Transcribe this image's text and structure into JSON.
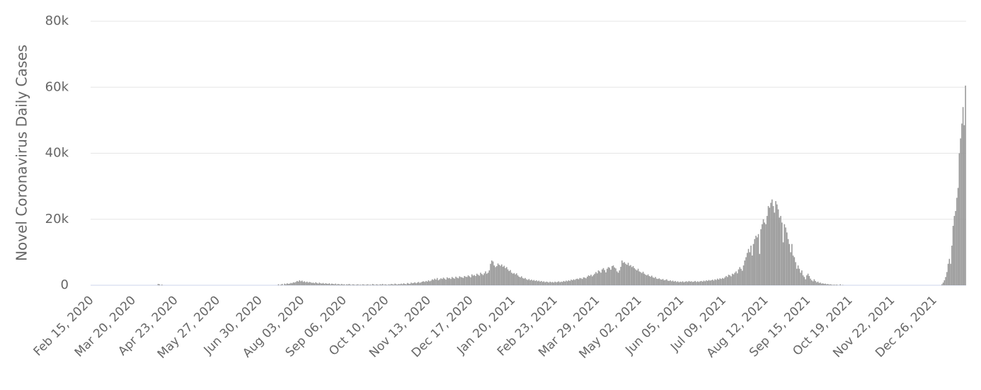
{
  "chart_data": {
    "type": "bar",
    "y_label": "Novel Coronavirus Daily Cases",
    "color": "#999999",
    "grid": true,
    "ylim": [
      0,
      80000
    ],
    "yticks": [
      0,
      {
        "value": 20000,
        "label": "20k"
      },
      {
        "value": 40000,
        "label": "40k"
      },
      {
        "value": 60000,
        "label": "60k"
      },
      {
        "value": 80000,
        "label": "80k"
      }
    ],
    "categories": [
      "Feb 15, 2020",
      null,
      null,
      null,
      null,
      null,
      null,
      null,
      null,
      null,
      null,
      null,
      null,
      null,
      null,
      null,
      null,
      null,
      null,
      null,
      null,
      null,
      null,
      null,
      null,
      null,
      null,
      null,
      null,
      null,
      null,
      null,
      null,
      null,
      "Mar 20, 2020",
      null,
      null,
      null,
      null,
      null,
      null,
      null,
      null,
      null,
      null,
      null,
      null,
      null,
      null,
      null,
      null,
      null,
      null,
      null,
      null,
      null,
      null,
      null,
      null,
      null,
      null,
      null,
      null,
      null,
      null,
      null,
      null,
      null,
      "Apr 23, 2020",
      null,
      null,
      null,
      null,
      null,
      null,
      null,
      null,
      null,
      null,
      null,
      null,
      null,
      null,
      null,
      null,
      null,
      null,
      null,
      null,
      null,
      null,
      null,
      null,
      null,
      null,
      null,
      null,
      null,
      null,
      null,
      null,
      null,
      "May 27, 2020",
      null,
      null,
      null,
      null,
      null,
      null,
      null,
      null,
      null,
      null,
      null,
      null,
      null,
      null,
      null,
      null,
      null,
      null,
      null,
      null,
      null,
      null,
      null,
      null,
      null,
      null,
      null,
      null,
      null,
      null,
      null,
      null,
      null,
      "Jun 30, 2020",
      null,
      null,
      null,
      null,
      null,
      null,
      null,
      null,
      null,
      null,
      null,
      null,
      null,
      null,
      null,
      null,
      null,
      null,
      null,
      null,
      null,
      null,
      null,
      null,
      null,
      null,
      null,
      null,
      null,
      null,
      null,
      null,
      null,
      "Aug 03, 2020",
      null,
      null,
      null,
      null,
      null,
      null,
      null,
      null,
      null,
      null,
      null,
      null,
      null,
      null,
      null,
      null,
      null,
      null,
      null,
      null,
      null,
      null,
      null,
      null,
      null,
      null,
      null,
      null,
      null,
      null,
      null,
      null,
      null,
      "Sep 06, 2020",
      null,
      null,
      null,
      null,
      null,
      null,
      null,
      null,
      null,
      null,
      null,
      null,
      null,
      null,
      null,
      null,
      null,
      null,
      null,
      null,
      null,
      null,
      null,
      null,
      null,
      null,
      null,
      null,
      null,
      null,
      null,
      null,
      null,
      "Oct 10, 2020",
      null,
      null,
      null,
      null,
      null,
      null,
      null,
      null,
      null,
      null,
      null,
      null,
      null,
      null,
      null,
      null,
      null,
      null,
      null,
      null,
      null,
      null,
      null,
      null,
      null,
      null,
      null,
      null,
      null,
      null,
      null,
      null,
      null,
      "Nov 13, 2020",
      null,
      null,
      null,
      null,
      null,
      null,
      null,
      null,
      null,
      null,
      null,
      null,
      null,
      null,
      null,
      null,
      null,
      null,
      null,
      null,
      null,
      null,
      null,
      null,
      null,
      null,
      null,
      null,
      null,
      null,
      null,
      null,
      null,
      "Dec 17, 2020",
      null,
      null,
      null,
      null,
      null,
      null,
      null,
      null,
      null,
      null,
      null,
      null,
      null,
      null,
      null,
      null,
      null,
      null,
      null,
      null,
      null,
      null,
      null,
      null,
      null,
      null,
      null,
      null,
      null,
      null,
      null,
      null,
      null,
      "Jan 20, 2021",
      null,
      null,
      null,
      null,
      null,
      null,
      null,
      null,
      null,
      null,
      null,
      null,
      null,
      null,
      null,
      null,
      null,
      null,
      null,
      null,
      null,
      null,
      null,
      null,
      null,
      null,
      null,
      null,
      null,
      null,
      null,
      null,
      null,
      "Feb 23, 2021",
      null,
      null,
      null,
      null,
      null,
      null,
      null,
      null,
      null,
      null,
      null,
      null,
      null,
      null,
      null,
      null,
      null,
      null,
      null,
      null,
      null,
      null,
      null,
      null,
      null,
      null,
      null,
      null,
      null,
      null,
      null,
      null,
      null,
      "Mar 29, 2021",
      null,
      null,
      null,
      null,
      null,
      null,
      null,
      null,
      null,
      null,
      null,
      null,
      null,
      null,
      null,
      null,
      null,
      null,
      null,
      null,
      null,
      null,
      null,
      null,
      null,
      null,
      null,
      null,
      null,
      null,
      null,
      null,
      null,
      "May 02, 2021",
      null,
      null,
      null,
      null,
      null,
      null,
      null,
      null,
      null,
      null,
      null,
      null,
      null,
      null,
      null,
      null,
      null,
      null,
      null,
      null,
      null,
      null,
      null,
      null,
      null,
      null,
      null,
      null,
      null,
      null,
      null,
      null,
      null,
      "Jun 05, 2021",
      null,
      null,
      null,
      null,
      null,
      null,
      null,
      null,
      null,
      null,
      null,
      null,
      null,
      null,
      null,
      null,
      null,
      null,
      null,
      null,
      null,
      null,
      null,
      null,
      null,
      null,
      null,
      null,
      null,
      null,
      null,
      null,
      null,
      "Jul 09, 2021",
      null,
      null,
      null,
      null,
      null,
      null,
      null,
      null,
      null,
      null,
      null,
      null,
      null,
      null,
      null,
      null,
      null,
      null,
      null,
      null,
      null,
      null,
      null,
      null,
      null,
      null,
      null,
      null,
      null,
      null,
      null,
      null,
      null,
      "Aug 12, 2021",
      null,
      null,
      null,
      null,
      null,
      null,
      null,
      null,
      null,
      null,
      null,
      null,
      null,
      null,
      null,
      null,
      null,
      null,
      null,
      null,
      null,
      null,
      null,
      null,
      null,
      null,
      null,
      null,
      null,
      null,
      null,
      null,
      null,
      "Sep 15, 2021",
      null,
      null,
      null,
      null,
      null,
      null,
      null,
      null,
      null,
      null,
      null,
      null,
      null,
      null,
      null,
      null,
      null,
      null,
      null,
      null,
      null,
      null,
      null,
      null,
      null,
      null,
      null,
      null,
      null,
      null,
      null,
      null,
      null,
      "Oct 19, 2021",
      null,
      null,
      null,
      null,
      null,
      null,
      null,
      null,
      null,
      null,
      null,
      null,
      null,
      null,
      null,
      null,
      null,
      null,
      null,
      null,
      null,
      null,
      null,
      null,
      null,
      null,
      null,
      null,
      null,
      null,
      null,
      null,
      null,
      "Nov 22, 2021",
      null,
      null,
      null,
      null,
      null,
      null,
      null,
      null,
      null,
      null,
      null,
      null,
      null,
      null,
      null,
      null,
      null,
      null,
      null,
      null,
      null,
      null,
      null,
      null,
      null,
      null,
      null,
      null,
      null,
      null,
      null,
      null,
      null,
      "Dec 26, 2021",
      null,
      null,
      null,
      null,
      null,
      null,
      null,
      null,
      null,
      null,
      null,
      null,
      null,
      null,
      null,
      null,
      null,
      null,
      null,
      null,
      null,
      null,
      null,
      null,
      null
    ],
    "values": [
      0,
      0,
      0,
      0,
      0,
      0,
      0,
      0,
      0,
      0,
      0,
      0,
      0,
      0,
      0,
      0,
      0,
      0,
      0,
      0,
      0,
      0,
      0,
      0,
      0,
      0,
      0,
      0,
      0,
      0,
      0,
      0,
      0,
      0,
      0,
      0,
      0,
      0,
      0,
      0,
      0,
      0,
      0,
      0,
      0,
      0,
      0,
      0,
      0,
      0,
      0,
      0,
      0,
      0,
      400,
      300,
      0,
      200,
      0,
      0,
      0,
      0,
      0,
      0,
      0,
      0,
      0,
      0,
      0,
      0,
      0,
      0,
      0,
      0,
      0,
      0,
      0,
      0,
      0,
      0,
      0,
      0,
      0,
      0,
      0,
      0,
      0,
      0,
      0,
      0,
      0,
      0,
      0,
      0,
      0,
      0,
      0,
      0,
      0,
      0,
      0,
      0,
      0,
      0,
      0,
      0,
      0,
      0,
      0,
      0,
      0,
      0,
      0,
      0,
      0,
      0,
      0,
      0,
      0,
      0,
      0,
      0,
      0,
      0,
      0,
      0,
      0,
      0,
      0,
      0,
      0,
      0,
      0,
      0,
      0,
      0,
      0,
      0,
      0,
      0,
      0,
      0,
      0,
      0,
      0,
      0,
      0,
      0,
      0,
      0,
      0,
      300,
      0,
      200,
      400,
      0,
      500,
      300,
      600,
      400,
      500,
      700,
      600,
      900,
      800,
      1000,
      1300,
      1100,
      1500,
      1200,
      1400,
      1000,
      1200,
      900,
      1100,
      800,
      1000,
      900,
      700,
      800,
      600,
      900,
      700,
      500,
      800,
      600,
      500,
      700,
      400,
      600,
      500,
      400,
      600,
      300,
      500,
      400,
      300,
      500,
      200,
      400,
      300,
      200,
      400,
      200,
      300,
      100,
      300,
      200,
      400,
      200,
      100,
      300,
      200,
      100,
      200,
      300,
      100,
      200,
      100,
      300,
      200,
      100,
      200,
      300,
      100,
      200,
      100,
      400,
      200,
      100,
      300,
      200,
      100,
      300,
      200,
      400,
      100,
      300,
      200,
      100,
      300,
      200,
      400,
      300,
      200,
      500,
      300,
      200,
      400,
      300,
      500,
      300,
      600,
      400,
      300,
      700,
      500,
      400,
      800,
      600,
      700,
      900,
      600,
      800,
      1000,
      700,
      900,
      1100,
      1200,
      1000,
      1300,
      1100,
      1500,
      1200,
      1400,
      1800,
      1600,
      2000,
      1700,
      2200,
      1500,
      1800,
      2100,
      1900,
      2300,
      2000,
      1700,
      2400,
      2100,
      2200,
      1900,
      2500,
      2200,
      2000,
      2600,
      2300,
      2100,
      2700,
      2500,
      2400,
      2200,
      2800,
      2600,
      2500,
      3000,
      2700,
      2400,
      3300,
      2900,
      3100,
      2800,
      3500,
      3200,
      2900,
      3800,
      3400,
      3100,
      3600,
      4200,
      3500,
      3800,
      4500,
      6500,
      7500,
      7200,
      6000,
      5500,
      5800,
      6600,
      6200,
      5900,
      6300,
      5600,
      5900,
      5200,
      5500,
      4800,
      4300,
      4600,
      3800,
      3500,
      3700,
      3300,
      3600,
      3000,
      2600,
      2400,
      2700,
      2200,
      2000,
      2200,
      1800,
      1600,
      1900,
      1500,
      1700,
      1400,
      1600,
      1300,
      1500,
      1200,
      1400,
      1100,
      1300,
      1000,
      1200,
      900,
      1100,
      1000,
      800,
      1100,
      900,
      1000,
      800,
      1100,
      900,
      1000,
      1200,
      900,
      1100,
      1000,
      1300,
      1100,
      1400,
      1200,
      1500,
      1300,
      1700,
      1500,
      1800,
      1600,
      1900,
      2000,
      1800,
      2200,
      2100,
      1900,
      2400,
      2300,
      2100,
      2600,
      3000,
      2800,
      3200,
      2700,
      3100,
      3500,
      4000,
      3600,
      4500,
      4200,
      3800,
      4800,
      5200,
      4600,
      3900,
      5000,
      5500,
      5300,
      4700,
      5800,
      6000,
      5400,
      5100,
      4200,
      3800,
      4500,
      5600,
      7500,
      6800,
      7000,
      6500,
      6200,
      6800,
      5900,
      6100,
      5500,
      5800,
      5200,
      4800,
      4500,
      5000,
      4200,
      4000,
      3700,
      4100,
      3500,
      3200,
      3000,
      3300,
      2800,
      2600,
      2900,
      2400,
      2200,
      2500,
      2000,
      1900,
      2100,
      1800,
      1700,
      1900,
      1500,
      1600,
      1800,
      1400,
      1300,
      1500,
      1200,
      1400,
      1100,
      1300,
      1000,
      1200,
      900,
      1100,
      1000,
      1200,
      900,
      1100,
      1200,
      1000,
      1300,
      1100,
      1200,
      1000,
      1100,
      1300,
      1000,
      1200,
      1000,
      1200,
      1300,
      1100,
      1400,
      1200,
      1500,
      1300,
      1600,
      1400,
      1500,
      1700,
      1400,
      1800,
      1600,
      2000,
      1700,
      2100,
      1900,
      2200,
      2000,
      2400,
      2800,
      2500,
      3200,
      3000,
      2700,
      3500,
      3300,
      3800,
      4200,
      3600,
      4800,
      5500,
      5000,
      4400,
      6000,
      7500,
      8500,
      9800,
      11000,
      10000,
      12000,
      9000,
      12500,
      14000,
      15000,
      14500,
      15500,
      9500,
      17000,
      18500,
      20000,
      19000,
      18500,
      21000,
      24000,
      23500,
      25000,
      26000,
      24000,
      22000,
      25500,
      24500,
      23000,
      20500,
      21000,
      19000,
      13000,
      18500,
      17500,
      16000,
      14000,
      12500,
      10000,
      12500,
      9000,
      8500,
      7000,
      5000,
      6000,
      5000,
      3800,
      4500,
      3000,
      2500,
      1800,
      3000,
      3500,
      2800,
      2000,
      1500,
      1200,
      1800,
      1300,
      900,
      1100,
      700,
      800,
      500,
      600,
      400,
      500,
      300,
      400,
      200,
      300,
      200,
      100,
      200,
      100,
      200,
      100,
      0,
      300,
      0,
      100,
      0,
      0,
      0,
      0,
      0,
      0,
      0,
      0,
      0,
      0,
      0,
      0,
      0,
      0,
      0,
      0,
      0,
      0,
      0,
      0,
      0,
      0,
      0,
      0,
      0,
      0,
      0,
      0,
      0,
      0,
      0,
      0,
      0,
      0,
      0,
      0,
      0,
      0,
      0,
      0,
      0,
      0,
      0,
      0,
      0,
      0,
      0,
      0,
      0,
      0,
      0,
      0,
      0,
      0,
      0,
      0,
      0,
      0,
      0,
      0,
      0,
      0,
      0,
      0,
      0,
      0,
      0,
      0,
      0,
      0,
      0,
      0,
      0,
      0,
      0,
      0,
      0,
      0,
      0,
      300,
      800,
      1500,
      2500,
      4000,
      6500,
      8000,
      6500,
      12000,
      18000,
      21000,
      22500,
      26500,
      29500,
      40000,
      44500,
      49000,
      54000,
      48500,
      60500
    ]
  }
}
